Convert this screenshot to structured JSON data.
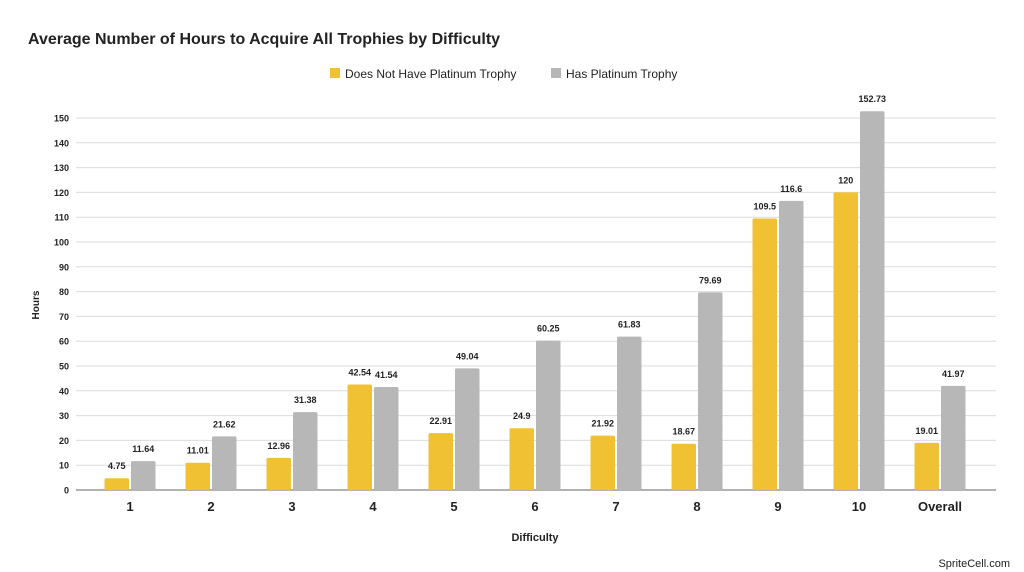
{
  "chart_data": {
    "type": "bar",
    "title": "Average Number of Hours to Acquire All Trophies by Difficulty",
    "xlabel": "Difficulty",
    "ylabel": "Hours",
    "ylim": [
      0,
      150
    ],
    "yticks": [
      0,
      10,
      20,
      30,
      40,
      50,
      60,
      70,
      80,
      90,
      100,
      110,
      120,
      130,
      140,
      150
    ],
    "grid": true,
    "legend_position": "top",
    "categories": [
      "1",
      "2",
      "3",
      "4",
      "5",
      "6",
      "7",
      "8",
      "9",
      "10",
      "Overall"
    ],
    "series": [
      {
        "name": "Does Not Have Platinum Trophy",
        "color": "#f0c132",
        "values": [
          4.75,
          11.01,
          12.96,
          42.54,
          22.91,
          24.9,
          21.92,
          18.67,
          109.5,
          120,
          19.01
        ]
      },
      {
        "name": "Has Platinum Trophy",
        "color": "#b7b7b7",
        "values": [
          11.64,
          21.62,
          31.38,
          41.54,
          49.04,
          60.25,
          61.83,
          79.69,
          116.6,
          152.73,
          41.97
        ]
      }
    ]
  },
  "watermark": "SpriteCell.com"
}
